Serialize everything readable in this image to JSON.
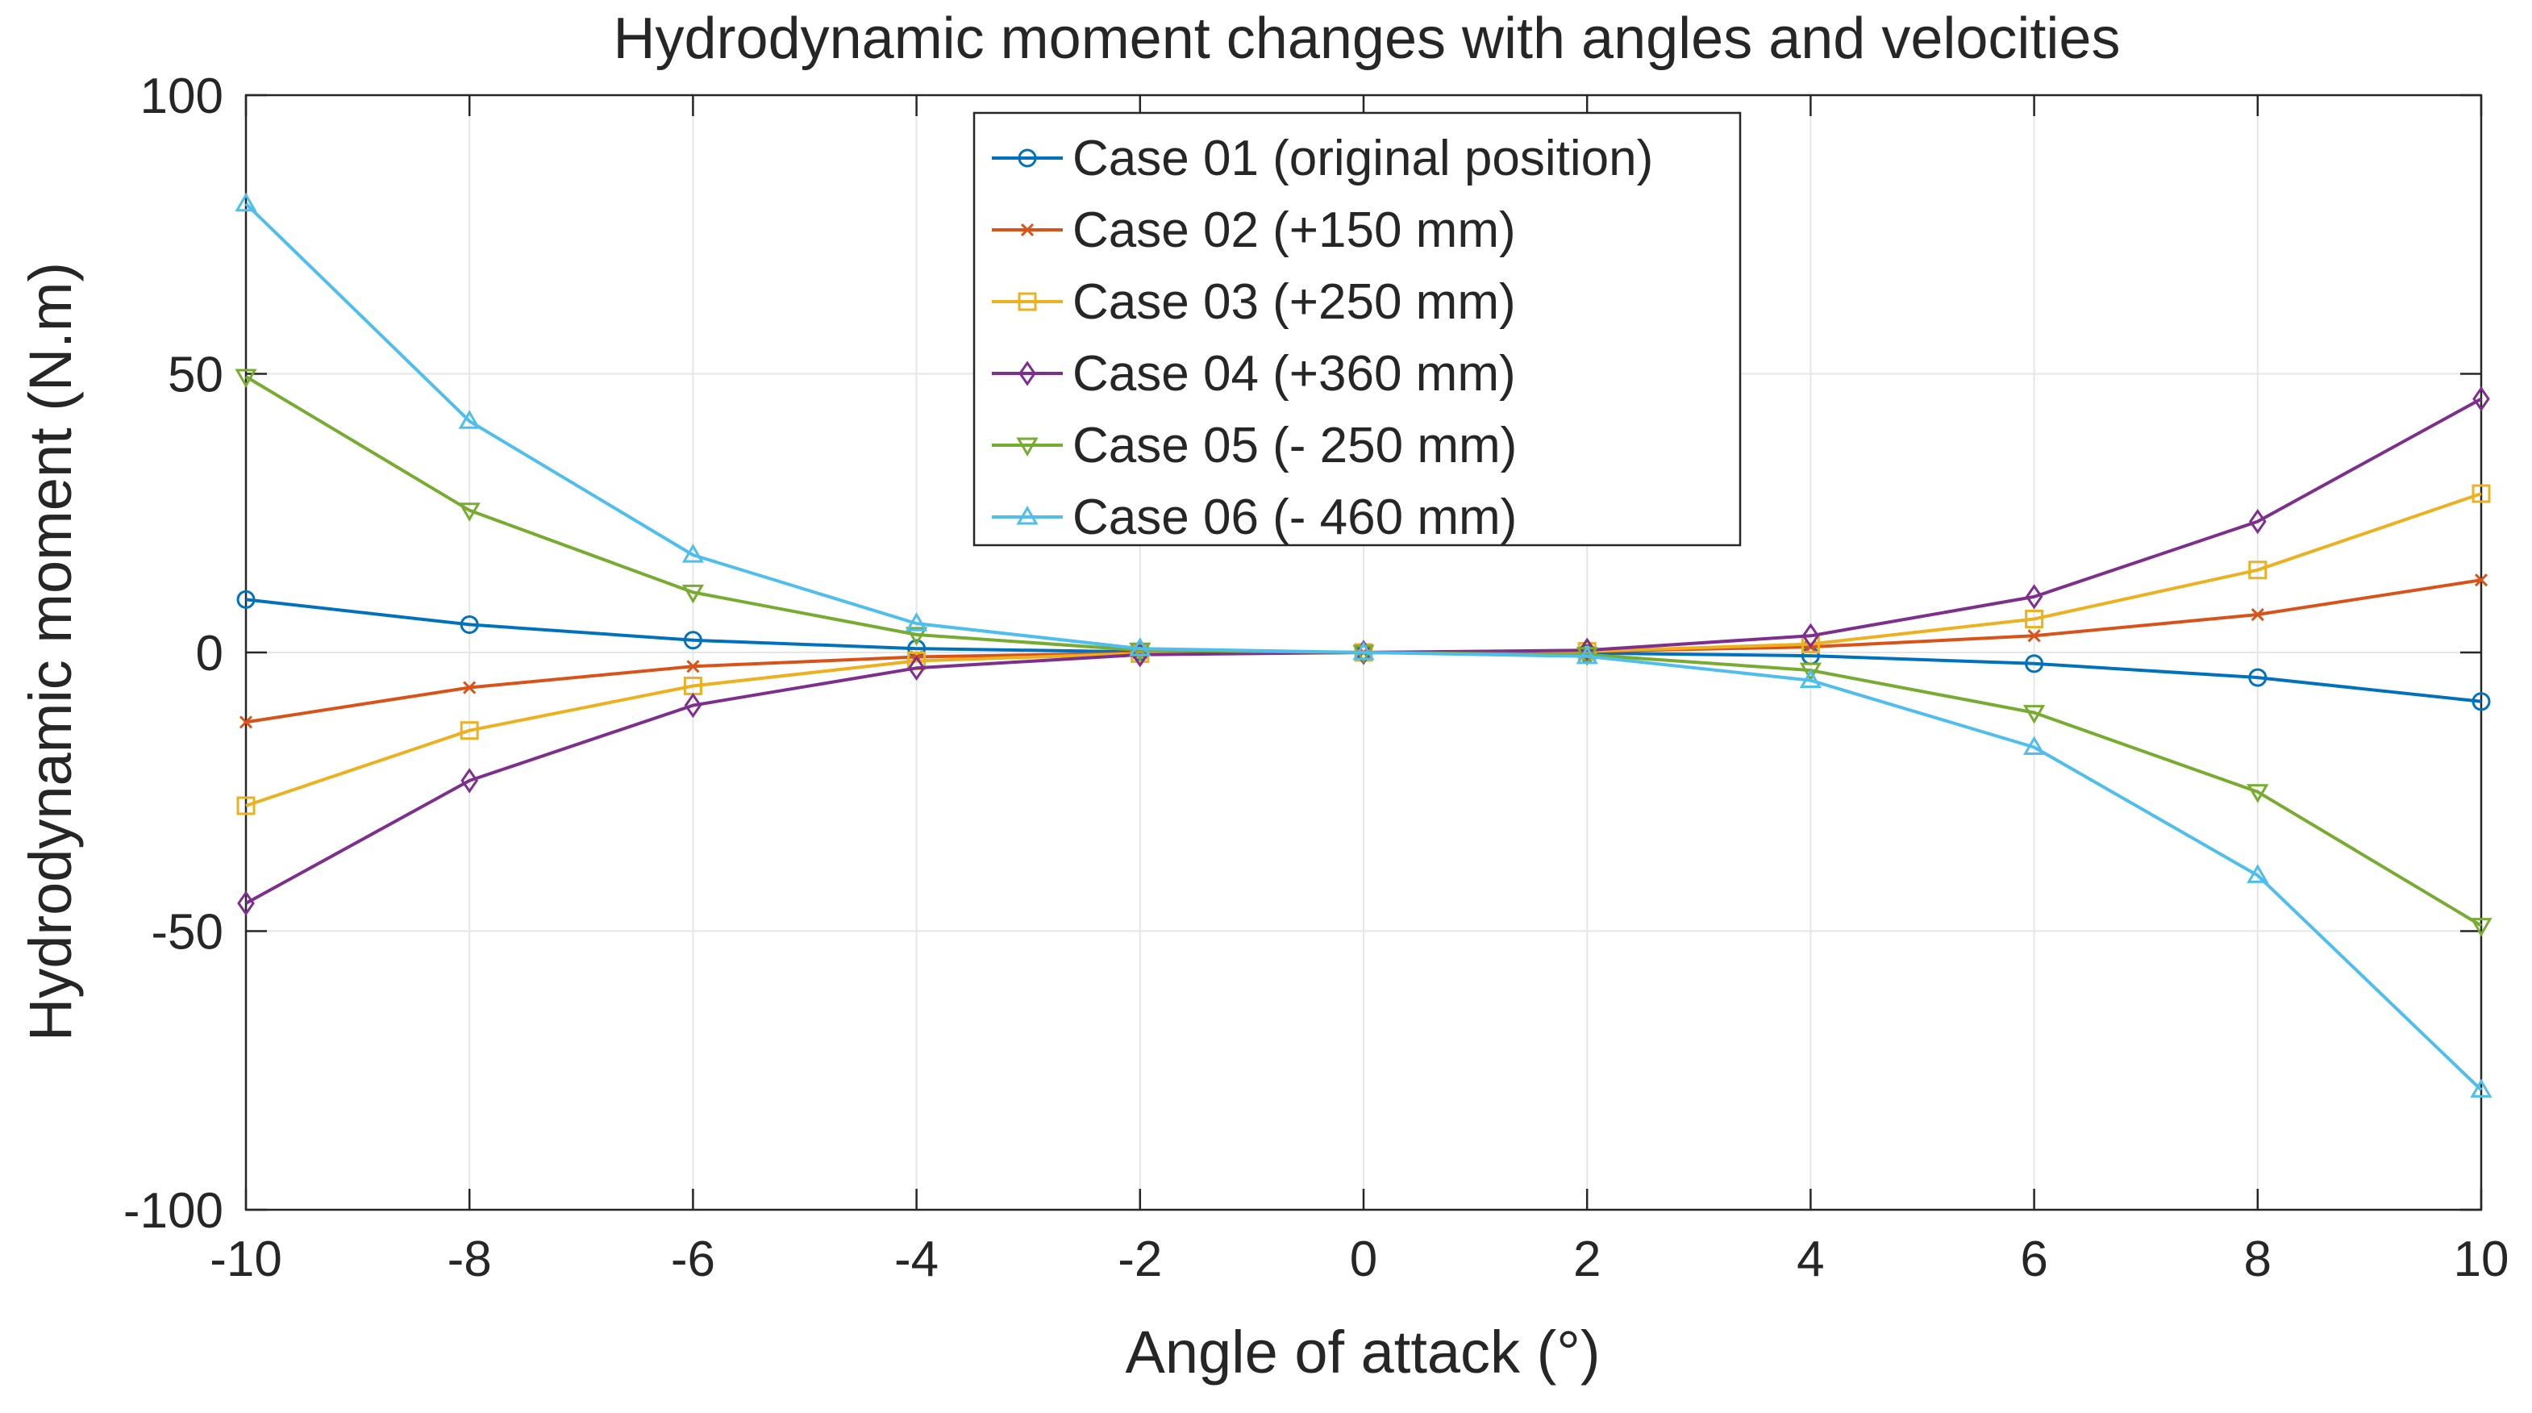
{
  "chart_data": {
    "type": "line",
    "title": "Hydrodynamic moment changes with angles and velocities",
    "xlabel": "Angle of attack (°)",
    "ylabel": "Hydrodynamic moment (N.m)",
    "xlim": [
      -10,
      10
    ],
    "ylim": [
      -100,
      100
    ],
    "xticks": [
      -10,
      -8,
      -6,
      -4,
      -2,
      0,
      2,
      4,
      6,
      8,
      10
    ],
    "yticks": [
      -100,
      -50,
      0,
      50,
      100
    ],
    "xtick_labels": [
      "-10",
      "-8",
      "-6",
      "-4",
      "-2",
      "0",
      "2",
      "4",
      "6",
      "8",
      "10"
    ],
    "ytick_labels": [
      "-100",
      "-50",
      "0",
      "50",
      "100"
    ],
    "grid": true,
    "legend_position": "top-center",
    "x": [
      -10,
      -8,
      -6,
      -4,
      -2,
      0,
      2,
      4,
      6,
      8,
      10
    ],
    "series": [
      {
        "name": "Case 01 (original position)",
        "color": "#0072BD",
        "marker": "circle",
        "values": [
          9.5,
          5,
          2.2,
          0.7,
          0.1,
          0,
          -0.1,
          -0.6,
          -2,
          -4.5,
          -8.8
        ]
      },
      {
        "name": "Case 02 (+150 mm)",
        "color": "#D95319",
        "marker": "x",
        "values": [
          -12.5,
          -6.3,
          -2.5,
          -0.8,
          -0.1,
          0,
          0.2,
          1,
          3,
          6.8,
          13
        ]
      },
      {
        "name": "Case 03 (+250 mm)",
        "color": "#EDB120",
        "marker": "square",
        "values": [
          -27.5,
          -14,
          -6,
          -1.5,
          -0.2,
          0,
          0.2,
          1.5,
          6,
          14.8,
          28.5
        ]
      },
      {
        "name": "Case 04 (+360 mm)",
        "color": "#7E2F8E",
        "marker": "diamond",
        "values": [
          -45,
          -23,
          -9.5,
          -2.8,
          -0.4,
          0,
          0.4,
          3,
          10,
          23.5,
          45.5
        ]
      },
      {
        "name": "Case 05 (- 250 mm)",
        "color": "#77AC30",
        "marker": "triangle-down",
        "values": [
          49.5,
          25.5,
          10.8,
          3.2,
          0.4,
          0,
          -0.4,
          -3.2,
          -10.8,
          -25,
          -49
        ]
      },
      {
        "name": "Case 06 (- 460 mm)",
        "color": "#4DBEEE",
        "marker": "triangle-up",
        "values": [
          80.5,
          41.5,
          17.5,
          5.2,
          0.7,
          0,
          -0.7,
          -5,
          -17,
          -40,
          -78.5
        ]
      }
    ]
  }
}
